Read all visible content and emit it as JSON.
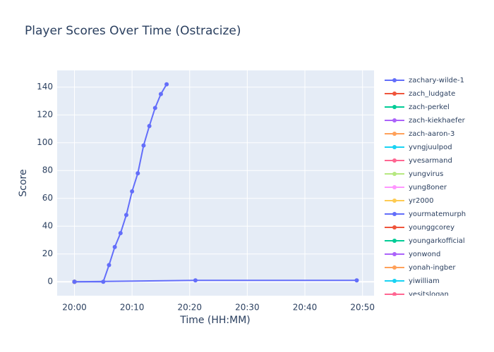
{
  "chart_data": {
    "type": "line",
    "title": "Player Scores Over Time (Ostracize)",
    "x_label": "Time (HH:MM)",
    "y_label": "Score",
    "xlim": [
      "19:57",
      "20:52"
    ],
    "xticks": [
      "20:00",
      "20:10",
      "20:20",
      "20:30",
      "20:40",
      "20:50"
    ],
    "ylim": [
      -10,
      152
    ],
    "yticks": [
      0,
      20,
      40,
      60,
      80,
      100,
      120,
      140
    ],
    "grid": true,
    "series": [
      {
        "name": "zachary-wilde-1",
        "color": "#636efa",
        "x": [
          "20:00",
          "20:05",
          "20:06",
          "20:07",
          "20:08",
          "20:09",
          "20:10",
          "20:11",
          "20:12",
          "20:13",
          "20:14",
          "20:15",
          "20:16"
        ],
        "values": [
          0,
          0,
          12,
          25,
          35,
          48,
          65,
          78,
          98,
          112,
          125,
          135,
          142
        ]
      },
      {
        "name": "zach_ludgate",
        "color": "#EF553B",
        "x": [
          "20:00"
        ],
        "values": [
          0
        ]
      },
      {
        "name": "zach-perkel",
        "color": "#00cc96",
        "x": [
          "20:00"
        ],
        "values": [
          0
        ]
      },
      {
        "name": "zach-kiekhaefer",
        "color": "#ab63fa",
        "x": [
          "20:00"
        ],
        "values": [
          0
        ]
      },
      {
        "name": "zach-aaron-3",
        "color": "#FFA15A",
        "x": [
          "20:00"
        ],
        "values": [
          0
        ]
      },
      {
        "name": "yvngjuulpod",
        "color": "#19d3f3",
        "x": [
          "20:00"
        ],
        "values": [
          0
        ]
      },
      {
        "name": "yvesarmand",
        "color": "#FF6692",
        "x": [
          "20:00"
        ],
        "values": [
          0
        ]
      },
      {
        "name": "yungvirus",
        "color": "#B6E880",
        "x": [
          "20:00"
        ],
        "values": [
          0
        ]
      },
      {
        "name": "yung8oner",
        "color": "#FF97FF",
        "x": [
          "20:00"
        ],
        "values": [
          0
        ]
      },
      {
        "name": "yr2000",
        "color": "#FECB52",
        "x": [
          "20:00"
        ],
        "values": [
          0
        ]
      },
      {
        "name": "yourmatemurph",
        "color": "#636efa",
        "x": [
          "20:00",
          "20:21",
          "20:49"
        ],
        "values": [
          0,
          1,
          1
        ]
      },
      {
        "name": "younggcorey",
        "color": "#EF553B",
        "x": [
          "20:00"
        ],
        "values": [
          0
        ]
      },
      {
        "name": "youngarkofficial",
        "color": "#00cc96",
        "x": [
          "20:00"
        ],
        "values": [
          0
        ]
      },
      {
        "name": "yonwond",
        "color": "#ab63fa",
        "x": [
          "20:00"
        ],
        "values": [
          0
        ]
      },
      {
        "name": "yonah-ingber",
        "color": "#FFA15A",
        "x": [
          "20:00"
        ],
        "values": [
          0
        ]
      },
      {
        "name": "yiwilliam",
        "color": "#19d3f3",
        "x": [
          "20:00"
        ],
        "values": [
          0
        ]
      },
      {
        "name": "yesitslogan",
        "color": "#FF6692",
        "x": [
          "20:00"
        ],
        "values": [
          0
        ]
      }
    ]
  }
}
